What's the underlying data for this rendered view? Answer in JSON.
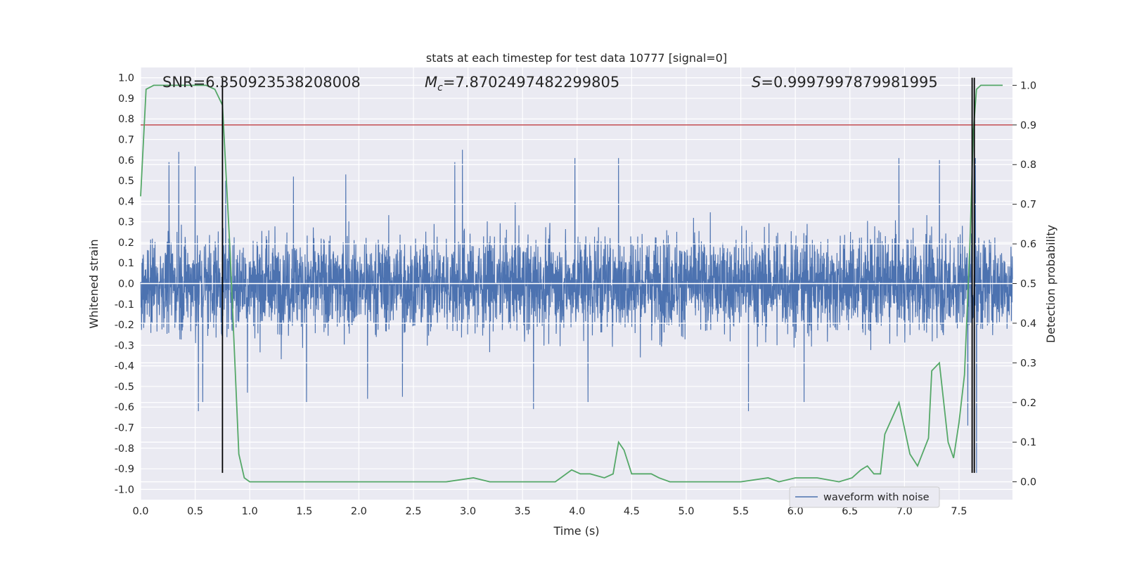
{
  "chart_data": {
    "type": "line",
    "title": "stats at each timestep for test data 10777 [signal=0]",
    "xlabel": "Time (s)",
    "ylabel_left": "Whitened strain",
    "ylabel_right": "Detection probability",
    "xlim": [
      0.0,
      7.99
    ],
    "ylim_left": [
      -1.05,
      1.05
    ],
    "ylim_right": [
      -0.045,
      1.045
    ],
    "x_ticks": [
      "0.0",
      "0.5",
      "1.0",
      "1.5",
      "2.0",
      "2.5",
      "3.0",
      "3.5",
      "4.0",
      "4.5",
      "5.0",
      "5.5",
      "6.0",
      "6.5",
      "7.0",
      "7.5"
    ],
    "y_ticks_left": [
      "-1.0",
      "-0.9",
      "-0.8",
      "-0.7",
      "-0.6",
      "-0.5",
      "-0.4",
      "-0.3",
      "-0.2",
      "-0.1",
      "0.0",
      "0.1",
      "0.2",
      "0.3",
      "0.4",
      "0.5",
      "0.6",
      "0.7",
      "0.8",
      "0.9",
      "1.0"
    ],
    "y_ticks_right": [
      "0.0",
      "0.1",
      "0.2",
      "0.3",
      "0.4",
      "0.5",
      "0.6",
      "0.7",
      "0.8",
      "0.9",
      "1.0"
    ],
    "annotations": {
      "snr": "SNR=6.350923538208008",
      "mc_symbol": "M",
      "mc_subscript": "c",
      "mc_value": "=7.8702497482299805",
      "s_symbol": "S",
      "s_value": "=0.9997997879981995"
    },
    "legend": {
      "label": "waveform with noise",
      "placement": "lower-right"
    },
    "threshold_line": {
      "axis": "right",
      "value": 0.9,
      "color": "#c44e52"
    },
    "vertical_markers": [
      {
        "x": 0.75,
        "y_range_left": [
          -0.92,
          1.0
        ]
      },
      {
        "x": 7.62,
        "y_range_left": [
          -0.92,
          1.0
        ]
      },
      {
        "x": 7.64,
        "y_range_left": [
          -0.92,
          1.0
        ]
      }
    ],
    "series": [
      {
        "name": "waveform with noise",
        "axis": "left",
        "color": "#4c72b0",
        "envelope": "dense noise, core band about ±0.3, spikes up to about ±0.65",
        "spikes": [
          {
            "x": 0.35,
            "y": 0.64
          },
          {
            "x": 0.26,
            "y": 0.59
          },
          {
            "x": 0.5,
            "y": 0.57
          },
          {
            "x": 0.78,
            "y": 0.5
          },
          {
            "x": 1.4,
            "y": 0.52
          },
          {
            "x": 1.88,
            "y": 0.53
          },
          {
            "x": 2.88,
            "y": 0.59
          },
          {
            "x": 2.95,
            "y": 0.65
          },
          {
            "x": 3.98,
            "y": 0.61
          },
          {
            "x": 4.38,
            "y": 0.61
          },
          {
            "x": 6.95,
            "y": 0.61
          },
          {
            "x": 7.32,
            "y": 0.6
          },
          {
            "x": 7.58,
            "y": 0.69
          },
          {
            "x": 7.65,
            "y": 0.61
          },
          {
            "x": 0.53,
            "y": -0.62
          },
          {
            "x": 0.57,
            "y": -0.58
          },
          {
            "x": 0.98,
            "y": -0.53
          },
          {
            "x": 1.52,
            "y": -0.58
          },
          {
            "x": 2.08,
            "y": -0.56
          },
          {
            "x": 2.4,
            "y": -0.55
          },
          {
            "x": 3.6,
            "y": -0.61
          },
          {
            "x": 4.1,
            "y": -0.58
          },
          {
            "x": 5.57,
            "y": -0.62
          },
          {
            "x": 6.08,
            "y": -0.58
          },
          {
            "x": 7.58,
            "y": -0.69
          },
          {
            "x": 7.66,
            "y": -0.92
          }
        ]
      },
      {
        "name": "",
        "axis": "right",
        "color": "#55a868",
        "x": [
          0.0,
          0.05,
          0.12,
          0.25,
          0.4,
          0.52,
          0.6,
          0.68,
          0.75,
          0.82,
          0.9,
          0.95,
          1.0,
          1.2,
          1.5,
          2.0,
          2.5,
          2.8,
          3.05,
          3.2,
          3.5,
          3.8,
          3.85,
          3.95,
          4.03,
          4.12,
          4.25,
          4.33,
          4.38,
          4.43,
          4.5,
          4.56,
          4.62,
          4.68,
          4.75,
          4.85,
          5.0,
          5.5,
          5.75,
          5.85,
          6.0,
          6.1,
          6.2,
          6.4,
          6.52,
          6.6,
          6.66,
          6.72,
          6.78,
          6.82,
          6.95,
          7.05,
          7.12,
          7.22,
          7.25,
          7.32,
          7.4,
          7.45,
          7.5,
          7.55,
          7.6,
          7.63,
          7.66,
          7.7,
          7.8,
          7.9
        ],
        "y": [
          0.72,
          0.99,
          1.0,
          1.0,
          1.0,
          1.0,
          1.0,
          0.99,
          0.95,
          0.58,
          0.07,
          0.01,
          0.0,
          0.0,
          0.0,
          0.0,
          0.0,
          0.0,
          0.01,
          0.0,
          0.0,
          0.0,
          0.01,
          0.03,
          0.02,
          0.02,
          0.01,
          0.02,
          0.1,
          0.08,
          0.02,
          0.02,
          0.02,
          0.02,
          0.01,
          0.0,
          0.0,
          0.0,
          0.01,
          0.0,
          0.01,
          0.01,
          0.01,
          0.0,
          0.01,
          0.03,
          0.04,
          0.02,
          0.02,
          0.12,
          0.2,
          0.07,
          0.04,
          0.11,
          0.28,
          0.3,
          0.1,
          0.06,
          0.15,
          0.27,
          0.6,
          0.88,
          0.99,
          1.0,
          1.0,
          1.0
        ]
      }
    ]
  }
}
